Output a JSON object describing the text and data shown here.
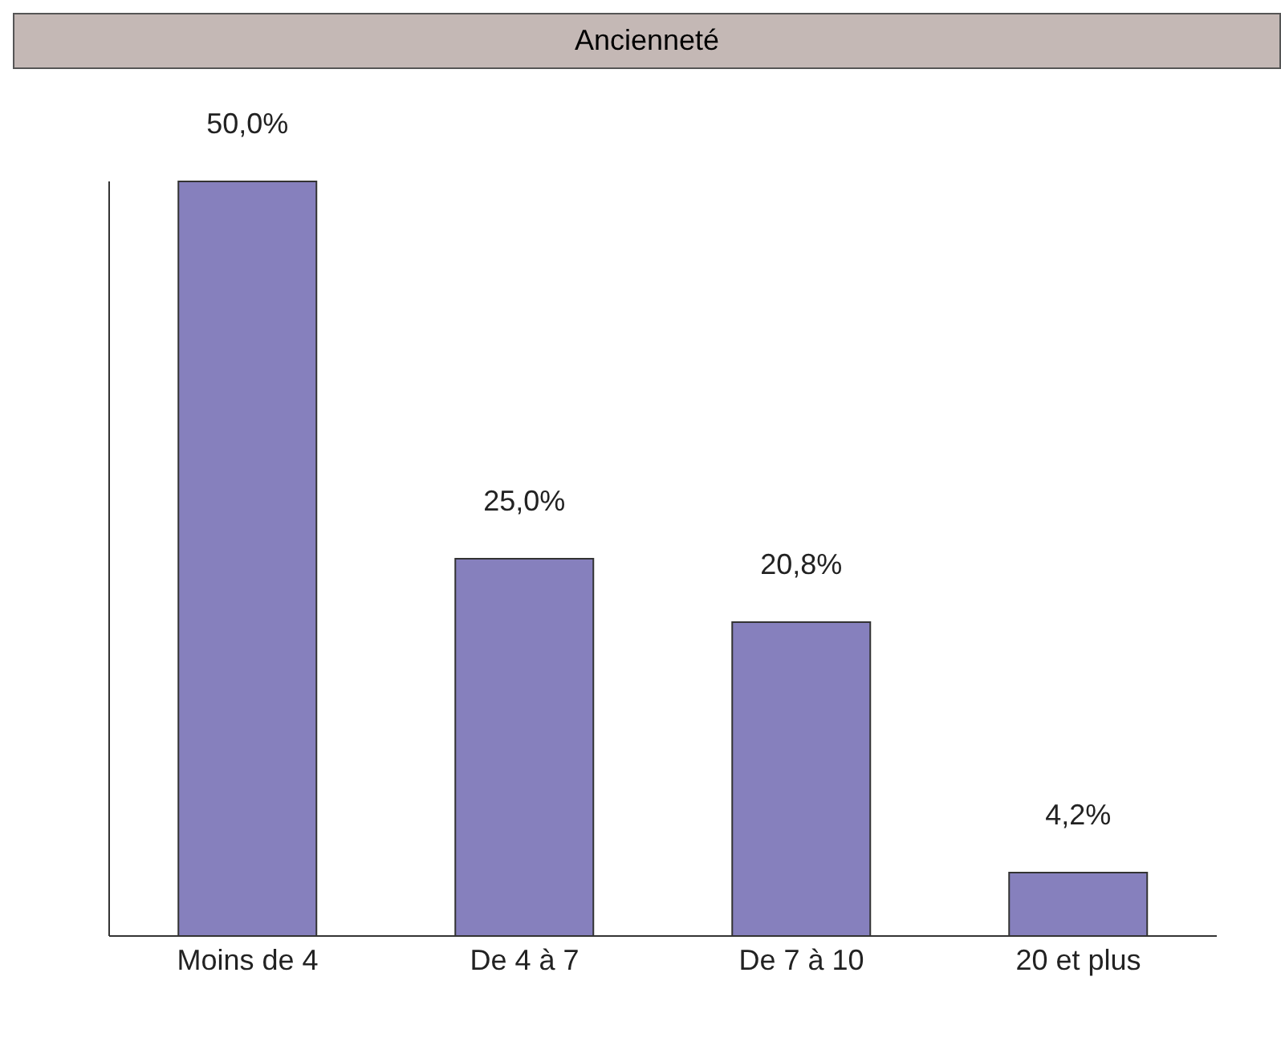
{
  "chart_data": {
    "type": "bar",
    "title": "Ancienneté",
    "categories": [
      "Moins de 4",
      "De 4 à 7",
      "De 7 à 10",
      "20 et plus"
    ],
    "values": [
      50,
      25,
      20.8,
      4.2
    ],
    "value_labels": [
      "50,0%",
      "25,0%",
      "20,8%",
      "4,2%"
    ],
    "color": "#8680bd"
  }
}
